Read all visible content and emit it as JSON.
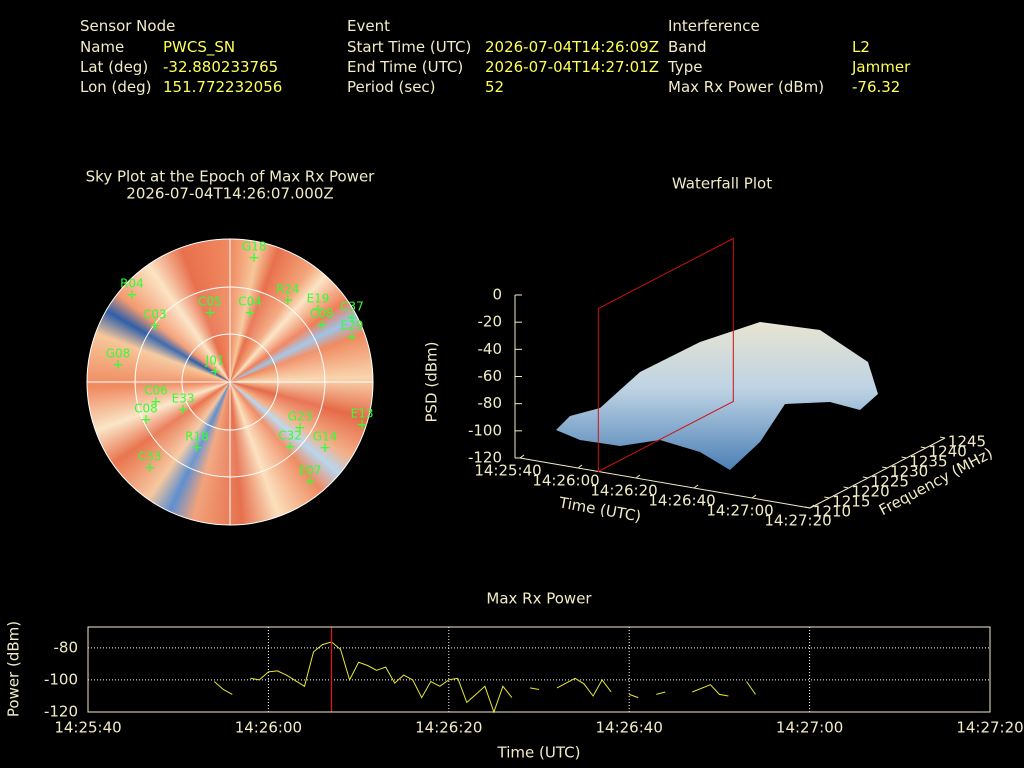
{
  "info": {
    "sections": [
      {
        "title": "Sensor Node",
        "fields": [
          {
            "label": "Name",
            "value": "PWCS_SN"
          },
          {
            "label": "Lat (deg)",
            "value": -32.880233765
          },
          {
            "label": "Lon (deg)",
            "value": 151.772232056
          }
        ]
      },
      {
        "title": "Event",
        "fields": [
          {
            "label": "Start Time (UTC)",
            "value": "2026-07-04T14:26:09Z"
          },
          {
            "label": "End Time (UTC)",
            "value": "2026-07-04T14:27:01Z"
          },
          {
            "label": "Period (sec)",
            "value": 52
          }
        ]
      },
      {
        "title": "Interference",
        "fields": [
          {
            "label": "Band",
            "value": "L2"
          },
          {
            "label": "Type",
            "value": "Jammer"
          },
          {
            "label": "Max Rx Power (dBm)",
            "value": -76.32
          }
        ]
      }
    ]
  },
  "chart_data": [
    {
      "type": "skyplot",
      "title": "Sky Plot at the Epoch of Max Rx Power",
      "subtitle": "2026-07-04T14:26:07.000Z",
      "color": "#33ff33",
      "satellites": [
        {
          "name": "G18",
          "az": 11,
          "el": 10.4
        },
        {
          "name": "R04",
          "az": 311.6,
          "el": 7.5
        },
        {
          "name": "R24",
          "az": 35.3,
          "el": 27
        },
        {
          "name": "E19",
          "az": 50.7,
          "el": 18.4
        },
        {
          "name": "C37",
          "az": 62.3,
          "el": 3.3
        },
        {
          "name": "E29",
          "az": 69.8,
          "el": 8.2
        },
        {
          "name": "C08",
          "az": 58.2,
          "el": 22
        },
        {
          "name": "C05",
          "az": 343.8,
          "el": 44.8
        },
        {
          "name": "C04",
          "az": 16.2,
          "el": 44.8
        },
        {
          "name": "C03",
          "az": 306.7,
          "el": 31
        },
        {
          "name": "G08",
          "az": 278.6,
          "el": 18.7
        },
        {
          "name": "C06",
          "az": 254.9,
          "el": 41.7
        },
        {
          "name": "E33",
          "az": 239.2,
          "el": 55.6
        },
        {
          "name": "C08",
          "az": 245.7,
          "el": 32
        },
        {
          "name": "R18",
          "az": 206.6,
          "el": 43.5
        },
        {
          "name": "C33",
          "az": 223,
          "el": 16
        },
        {
          "name": "G23",
          "az": 123.3,
          "el": 37.3
        },
        {
          "name": "C32",
          "az": 137.3,
          "el": 34.3
        },
        {
          "name": "G14",
          "az": 124.8,
          "el": 17.2
        },
        {
          "name": "E13",
          "az": 108,
          "el": 2.6
        },
        {
          "name": "E07",
          "az": 141.3,
          "el": 9.4
        },
        {
          "name": "J01",
          "az": 303.7,
          "el": 78.7
        }
      ]
    },
    {
      "type": "surface",
      "title": "Waterfall Plot",
      "xlabel": "Time (UTC)",
      "ylabel": "Frequency (MHz)",
      "zlabel": "PSD (dBm)",
      "xlim": [
        0,
        100
      ],
      "xticks": [
        {
          "value": 0,
          "label": "14:25:40"
        },
        {
          "value": 20,
          "label": "14:26:00"
        },
        {
          "value": 40,
          "label": "14:26:20"
        },
        {
          "value": 60,
          "label": "14:26:40"
        },
        {
          "value": 80,
          "label": "14:27:00"
        },
        {
          "value": 100,
          "label": "14:27:20"
        }
      ],
      "ylim": [
        1210,
        1245
      ],
      "yticks": [
        1210,
        1215,
        1220,
        1225,
        1230,
        1235,
        1240,
        1245
      ],
      "zlim": [
        -120,
        0
      ],
      "zticks": [
        0,
        -20,
        -40,
        -60,
        -80,
        -100,
        -120
      ],
      "marker_x": 27,
      "marker_color": "#cc1111"
    },
    {
      "type": "line",
      "title": "Max Rx Power",
      "xlabel": "Time (UTC)",
      "ylabel": "Power (dBm)",
      "xlim": [
        0,
        100
      ],
      "xticks": [
        {
          "value": 0,
          "label": "14:25:40"
        },
        {
          "value": 20,
          "label": "14:26:00"
        },
        {
          "value": 40,
          "label": "14:26:20"
        },
        {
          "value": 60,
          "label": "14:26:40"
        },
        {
          "value": 80,
          "label": "14:27:00"
        },
        {
          "value": 100,
          "label": "14:27:20"
        }
      ],
      "ylim": [
        -120,
        -67
      ],
      "yticks": [
        -120,
        -100,
        -80
      ],
      "grid": true,
      "marker_x": 27,
      "marker_color": "#ee1111",
      "series": [
        {
          "color": "#e8e830",
          "x": [
            14,
            15,
            16,
            17,
            18,
            19,
            20,
            21,
            22,
            24,
            25,
            26,
            27,
            28,
            29,
            30,
            31,
            32,
            33,
            34,
            35,
            36,
            37,
            38,
            39,
            40,
            41,
            42,
            43,
            44,
            45,
            46,
            47,
            48,
            49,
            50,
            51,
            52,
            54,
            55,
            56,
            57,
            58,
            59,
            60,
            61,
            62,
            63,
            64,
            65,
            67,
            69,
            70,
            71,
            72,
            73,
            74
          ],
          "values": [
            -101,
            -106,
            -109,
            null,
            -99,
            -100,
            -95,
            -94.4,
            -97,
            -104,
            -82.5,
            -78,
            -76.32,
            -81,
            -100,
            -89,
            -91,
            -94,
            -92,
            -102,
            -97,
            -100,
            -111,
            -101,
            -104,
            -100,
            -99,
            -114,
            -109,
            -104,
            -120,
            -104,
            -111,
            null,
            -105,
            -106,
            null,
            -105,
            -99,
            -102.5,
            -110,
            -100,
            -107.5,
            null,
            -109,
            -111,
            null,
            -109,
            -107.5,
            null,
            -107.5,
            -103,
            -109,
            -110,
            null,
            -101,
            -109
          ]
        }
      ]
    }
  ]
}
